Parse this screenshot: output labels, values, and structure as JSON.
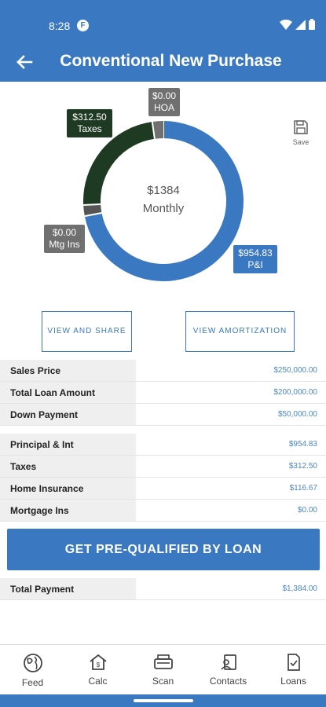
{
  "status": {
    "time": "8:28",
    "app_icon": "F"
  },
  "header": {
    "title": "Conventional New Purchase"
  },
  "chart_data": {
    "type": "pie",
    "slices": [
      {
        "name": "P&I",
        "value": 954.83,
        "label": "$954.83",
        "sublabel": "P&I",
        "color": "#3a78c2"
      },
      {
        "name": "Mtg Ins",
        "value": 0,
        "label": "$0.00",
        "sublabel": "Mtg Ins",
        "color": "#555555"
      },
      {
        "name": "Taxes",
        "value": 312.5,
        "label": "$312.50",
        "sublabel": "Taxes",
        "color": "#1f3a22"
      },
      {
        "name": "HOA",
        "value": 0,
        "label": "$0.00",
        "sublabel": "HOA",
        "color": "#707070"
      }
    ],
    "center_amount": "$1384",
    "center_label": "Monthly"
  },
  "save_label": "Save",
  "buttons": {
    "share": "VIEW AND SHARE",
    "amortization": "VIEW AMORTIZATION"
  },
  "summary": [
    {
      "label": "Sales Price",
      "value": "$250,000.00"
    },
    {
      "label": "Total Loan Amount",
      "value": "$200,000.00"
    },
    {
      "label": "Down Payment",
      "value": "$50,000.00"
    }
  ],
  "breakdown": [
    {
      "label": "Principal & Int",
      "value": "$954.83"
    },
    {
      "label": "Taxes",
      "value": "$312.50"
    },
    {
      "label": "Home Insurance",
      "value": "$116.67"
    },
    {
      "label": "Mortgage Ins",
      "value": "$0.00"
    }
  ],
  "cta_label": "GET PRE-QUALIFIED BY LOAN",
  "total": {
    "label": "Total Payment",
    "value": "$1,384.00"
  },
  "nav": [
    {
      "label": "Feed",
      "icon": "globe-icon"
    },
    {
      "label": "Calc",
      "icon": "house-calc-icon"
    },
    {
      "label": "Scan",
      "icon": "scanner-icon"
    },
    {
      "label": "Contacts",
      "icon": "contacts-icon"
    },
    {
      "label": "Loans",
      "icon": "document-check-icon"
    }
  ]
}
